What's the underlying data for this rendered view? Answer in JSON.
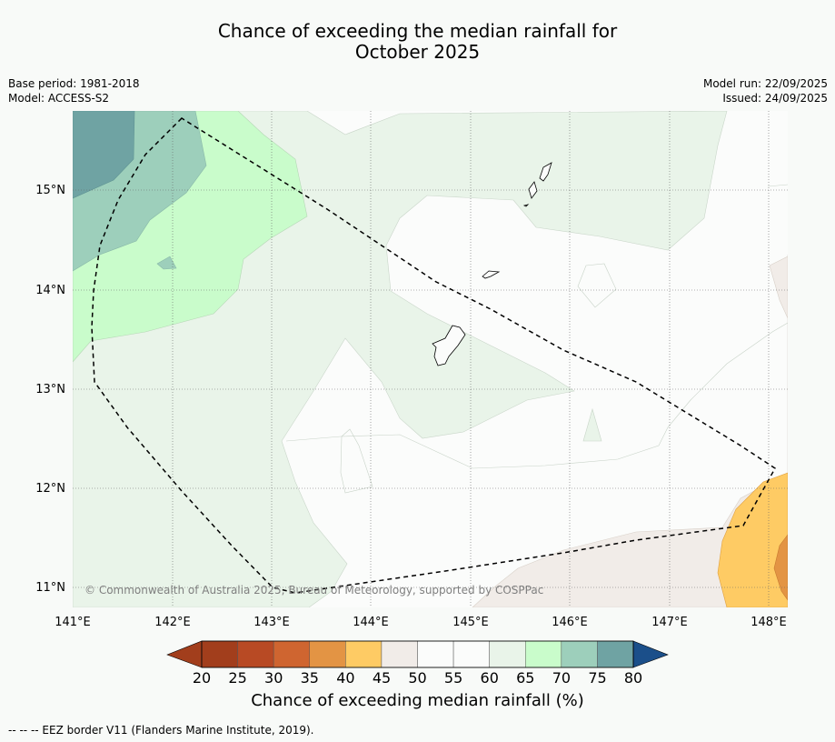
{
  "title": {
    "line1": "Chance of exceeding the median rainfall for",
    "line2": "October 2025"
  },
  "meta": {
    "base_period": "Base period: 1981-2018",
    "model": "Model: ACCESS-S2",
    "model_run": "Model run: 22/09/2025",
    "issued": "Issued: 24/09/2025"
  },
  "map": {
    "latitude_labels": [
      "15°N",
      "14°N",
      "13°N",
      "12°N",
      "11°N"
    ],
    "longitude_labels": [
      "141°E",
      "142°E",
      "143°E",
      "144°E",
      "145°E",
      "146°E",
      "147°E",
      "148°E"
    ],
    "copyright": "© Commonwealth of Australia 2025, Bureau of Meteorology, supported by COSPPac",
    "colors": {
      "c20": "#a23e1c",
      "c25": "#b84a24",
      "c30": "#cf6530",
      "c35": "#e39444",
      "c40": "#fecb64",
      "c45": "#f1ece8",
      "c50": "#fbfcfb",
      "c55": "#fbfcfb",
      "c60": "#e9f4e9",
      "c65": "#c9fccb",
      "c70": "#9dcfbb",
      "c75": "#6fa3a3",
      "c80": "#447c96",
      "c85": "#1b4f8a"
    }
  },
  "colorbar": {
    "ticks": [
      "20",
      "25",
      "30",
      "35",
      "40",
      "45",
      "50",
      "55",
      "60",
      "65",
      "70",
      "75",
      "80"
    ],
    "label": "Chance of exceeding median rainfall (%)"
  },
  "footnote": "--  --  -- EEZ border V11 (Flanders Marine Institute, 2019)."
}
